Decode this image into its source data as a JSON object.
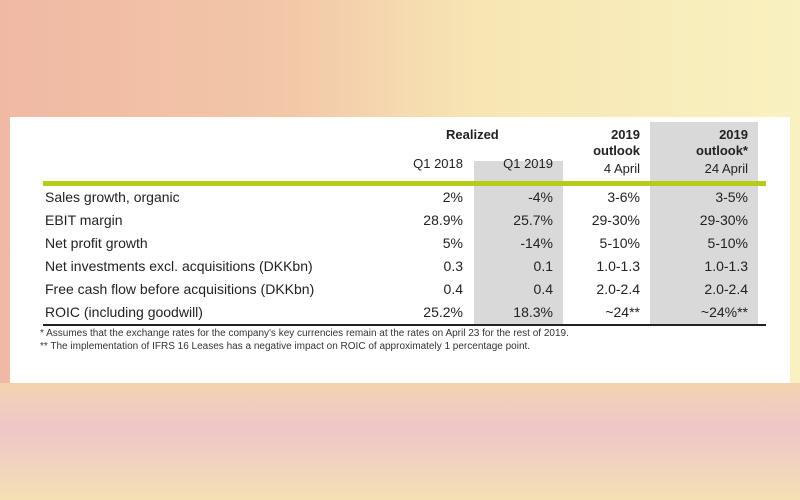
{
  "header": {
    "realized": "Realized",
    "col_q1_2018": "Q1 2018",
    "col_q1_2019": "Q1 2019",
    "col_outlook_year": "2019",
    "col_outlook_label": "outlook",
    "col_outlook_date": "4 April",
    "col_outlook2_year": "2019",
    "col_outlook2_label": "outlook*",
    "col_outlook2_date": "24 April"
  },
  "rows": [
    {
      "label": "Sales growth, organic",
      "q1_2018": "2%",
      "q1_2019": "-4%",
      "outlook_4apr": "3-6%",
      "outlook_24apr": "3-5%"
    },
    {
      "label": "EBIT margin",
      "q1_2018": "28.9%",
      "q1_2019": "25.7%",
      "outlook_4apr": "29-30%",
      "outlook_24apr": "29-30%"
    },
    {
      "label": "Net profit growth",
      "q1_2018": "5%",
      "q1_2019": "-14%",
      "outlook_4apr": "5-10%",
      "outlook_24apr": "5-10%"
    },
    {
      "label": "Net investments excl. acquisitions (DKKbn)",
      "q1_2018": "0.3",
      "q1_2019": "0.1",
      "outlook_4apr": "1.0-1.3",
      "outlook_24apr": "1.0-1.3"
    },
    {
      "label": "Free cash flow before acquisitions (DKKbn)",
      "q1_2018": "0.4",
      "q1_2019": "0.4",
      "outlook_4apr": "2.0-2.4",
      "outlook_24apr": "2.0-2.4"
    },
    {
      "label": "ROIC (including goodwill)",
      "q1_2018": "25.2%",
      "q1_2019": "18.3%",
      "outlook_4apr": "~24**",
      "outlook_24apr": "~24%**"
    }
  ],
  "footnotes": [
    "* Assumes that the exchange rates for the company's key currencies remain at the rates on April 23 for the rest of 2019.",
    "** The implementation of IFRS 16 Leases has a negative impact on ROIC of approximately 1 percentage point."
  ],
  "colors": {
    "accent_line": "#b5cc18",
    "shaded_column": "#d9d9d9"
  }
}
